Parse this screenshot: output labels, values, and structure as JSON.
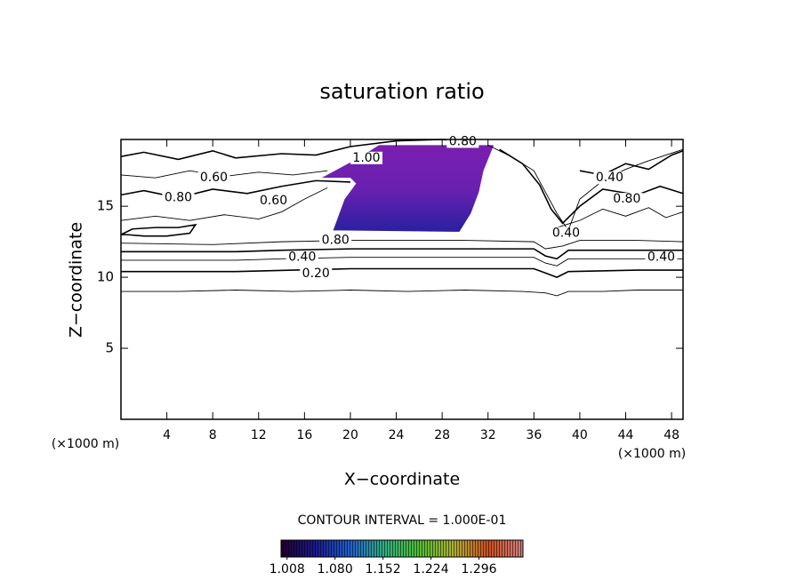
{
  "chart_data": {
    "type": "contour",
    "title": "saturation ratio",
    "xlabel": "X−coordinate",
    "ylabel": "Z−coordinate",
    "x_unit_label": "(×1000 m)",
    "x_unit_label_right": "(×1000 m)",
    "xlim": [
      0,
      49
    ],
    "ylim": [
      0,
      19.7
    ],
    "xticks": [
      4,
      8,
      12,
      16,
      20,
      24,
      28,
      32,
      36,
      40,
      44,
      48
    ],
    "yticks": [
      5,
      10,
      15
    ],
    "line_color": "#000000",
    "contours": [
      {
        "x": [
          0,
          5,
          10,
          15,
          20,
          25,
          30,
          35,
          37,
          38,
          39,
          42,
          45,
          49
        ],
        "y": [
          9.0,
          9.0,
          9.1,
          9.0,
          9.1,
          9.0,
          9.1,
          9.0,
          8.9,
          8.7,
          9.0,
          9.0,
          9.1,
          9.1
        ]
      },
      {
        "x": [
          0,
          10,
          15,
          20,
          30,
          36,
          37,
          38,
          39,
          45,
          49
        ],
        "y": [
          10.4,
          10.4,
          10.5,
          10.6,
          10.6,
          10.6,
          10.3,
          10.0,
          10.4,
          10.5,
          10.5
        ]
      },
      {
        "x": [
          0,
          10,
          14,
          20,
          30,
          36,
          37,
          38,
          39,
          45,
          49
        ],
        "y": [
          11.2,
          11.2,
          11.3,
          11.4,
          11.4,
          11.4,
          11.0,
          10.8,
          11.3,
          11.3,
          11.3
        ]
      },
      {
        "x": [
          0,
          10,
          14,
          20,
          30,
          36,
          37,
          38,
          39,
          45,
          49
        ],
        "y": [
          11.8,
          11.8,
          11.9,
          12.0,
          12.0,
          12.0,
          11.5,
          11.3,
          11.9,
          11.9,
          11.9
        ]
      },
      {
        "x": [
          0,
          8,
          14,
          20,
          30,
          36,
          37,
          38.5,
          40,
          45,
          49
        ],
        "y": [
          12.4,
          12.3,
          12.5,
          12.6,
          12.6,
          12.5,
          12.0,
          12.2,
          12.6,
          12.6,
          12.5
        ]
      },
      {
        "x": [
          0,
          1,
          3,
          5,
          6.5,
          6,
          4,
          2,
          0.5,
          0
        ],
        "y": [
          13.0,
          13.4,
          13.5,
          13.5,
          13.7,
          13.1,
          12.9,
          12.9,
          13.0,
          13.0
        ]
      },
      {
        "x": [
          0,
          3,
          6,
          9,
          12,
          14,
          16,
          18
        ],
        "y": [
          14.0,
          14.3,
          14.0,
          14.4,
          14.1,
          14.6,
          15.5,
          16.3
        ]
      },
      {
        "x": [
          0,
          2,
          5,
          8,
          11,
          14,
          17,
          20
        ],
        "y": [
          15.8,
          16.1,
          15.6,
          16.2,
          15.9,
          16.4,
          16.8,
          16.7
        ]
      },
      {
        "x": [
          0,
          3,
          6,
          9,
          12,
          15,
          18
        ],
        "y": [
          17.2,
          17.0,
          17.5,
          17.1,
          17.4,
          17.2,
          17.5
        ]
      },
      {
        "x": [
          0,
          2,
          5,
          8,
          10,
          14,
          17,
          20,
          24,
          28,
          31
        ],
        "y": [
          18.5,
          18.8,
          18.3,
          18.9,
          18.4,
          18.7,
          18.6,
          19.2,
          19.6,
          19.7,
          19.5
        ]
      },
      {
        "x": [
          32,
          34,
          36,
          37,
          38,
          39,
          40,
          42,
          44,
          46,
          49
        ],
        "y": [
          19.3,
          18.5,
          17.5,
          16.0,
          14.5,
          13.3,
          15.5,
          16.8,
          17.6,
          18.2,
          19.0
        ]
      },
      {
        "x": [
          33,
          35,
          36.5,
          37.5,
          38.5,
          40,
          42,
          45,
          47,
          49
        ],
        "y": [
          19.0,
          18.0,
          16.5,
          14.8,
          13.8,
          15.0,
          16.2,
          15.8,
          16.4,
          15.9
        ]
      },
      {
        "x": [
          38,
          40,
          42,
          44,
          46,
          47.5,
          49
        ],
        "y": [
          13.5,
          14.0,
          14.8,
          14.3,
          14.9,
          14.2,
          14.6
        ]
      },
      {
        "x": [
          40,
          42,
          44,
          46,
          48,
          49
        ],
        "y": [
          17.5,
          17.2,
          18.0,
          17.6,
          18.6,
          18.9
        ]
      }
    ],
    "contour_labels": [
      {
        "label": "0.20",
        "x": 17.0,
        "y": 10.25
      },
      {
        "label": "0.40",
        "x": 15.8,
        "y": 11.4
      },
      {
        "label": "0.40",
        "x": 47.1,
        "y": 11.4
      },
      {
        "label": "0.80",
        "x": 18.7,
        "y": 12.6
      },
      {
        "label": "0.60",
        "x": 8.1,
        "y": 17.0
      },
      {
        "label": "0.80",
        "x": 5.0,
        "y": 15.6
      },
      {
        "label": "0.60",
        "x": 13.3,
        "y": 15.4
      },
      {
        "label": "1.00",
        "x": 21.4,
        "y": 18.4
      },
      {
        "label": "0.80",
        "x": 29.8,
        "y": 19.55
      },
      {
        "label": "0.40",
        "x": 42.6,
        "y": 17.0
      },
      {
        "label": "0.80",
        "x": 44.1,
        "y": 15.5
      },
      {
        "label": "0.40",
        "x": 38.8,
        "y": 13.1
      }
    ],
    "shaded_region": {
      "x": [
        18.5,
        29.5,
        30.5,
        31.2,
        31.6,
        32.5,
        22.5,
        20.5,
        17.5,
        20,
        20.5,
        19.5
      ],
      "y": [
        13.3,
        13.2,
        14.5,
        16.0,
        17.5,
        19.3,
        19.3,
        18.3,
        17.0,
        17.0,
        16.6,
        15.5
      ],
      "colors": [
        "#7a1fb0",
        "#6a20b0",
        "#2a20a0"
      ]
    },
    "contour_interval": "CONTOUR INTERVAL = 1.000E-01",
    "colorbar": {
      "lim": [
        0.999,
        1.362
      ],
      "ticks": [
        {
          "value": 1.008,
          "label": "1.008"
        },
        {
          "value": 1.08,
          "label": "1.080"
        },
        {
          "value": 1.152,
          "label": "1.152"
        },
        {
          "value": 1.224,
          "label": "1.224"
        },
        {
          "value": 1.296,
          "label": "1.296"
        }
      ],
      "colors": [
        "#200030",
        "#1a1a90",
        "#2060d0",
        "#30b080",
        "#50c030",
        "#b0b030",
        "#d05020",
        "#d08080"
      ]
    }
  }
}
